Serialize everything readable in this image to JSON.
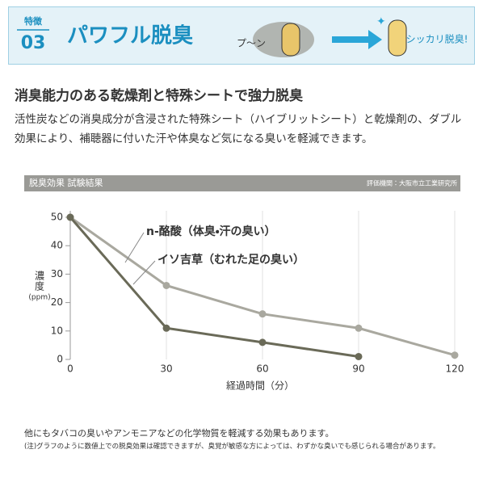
{
  "header": {
    "badge_label": "特徴",
    "badge_number": "03",
    "title": "パワフル脱臭",
    "smell_text": "プ〜ン",
    "result_text": "シッカリ脱臭!"
  },
  "section": {
    "heading": "消臭能力のある乾燥剤と特殊シートで強力脱臭",
    "body": "活性炭などの消臭成分が含浸された特殊シート（ハイブリットシート）と乾燥剤の、ダブル効果により、補聴器に付いた汗や体臭など気になる臭いを軽減できます。"
  },
  "chart_data": {
    "type": "line",
    "title": "脱臭効果 試験結果",
    "source": "評価機関：大阪市立工業研究所",
    "x": [
      0,
      30,
      60,
      90,
      120
    ],
    "series": [
      {
        "name": "n-酪酸（体臭・汗の臭い）",
        "color": "#a9a89f",
        "values": [
          50,
          26,
          16,
          11,
          1.5
        ]
      },
      {
        "name": "イソ吉草（むれた足の臭い）",
        "color": "#6a6a58",
        "values": [
          50,
          11,
          6,
          1,
          null
        ]
      }
    ],
    "xlim": [
      0,
      120
    ],
    "xticks": [
      0,
      30,
      60,
      90,
      120
    ],
    "ylim": [
      0,
      50
    ],
    "yticks": [
      0,
      10,
      20,
      30,
      40,
      50
    ],
    "x_label": "経過時間（分）",
    "y_label": [
      "濃",
      "度",
      "(ppm)"
    ],
    "grid": true
  },
  "footer": {
    "note": "他にもタバコの臭いやアンモニアなどの化学物質を軽減する効果もあります。",
    "disclaimer": "(注)グラフのように数値上での脱臭効果は確認できますが、臭覚が敏感な方によっては、わずかな臭いでも感じられる場合があります。"
  }
}
